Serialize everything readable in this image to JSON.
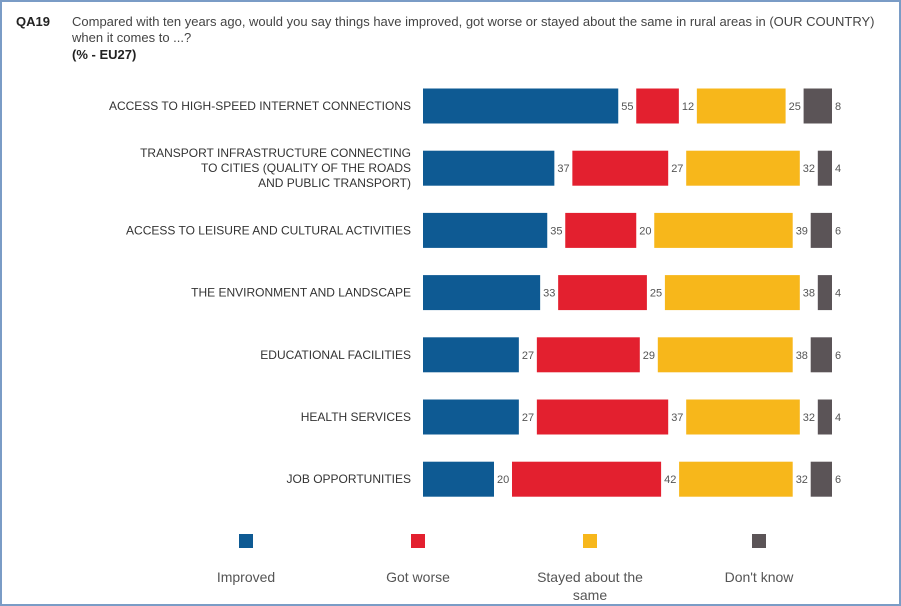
{
  "header": {
    "code": "QA19",
    "question": "Compared with ten years ago, would you say things have improved, got worse or stayed about the same in rural areas in (OUR COUNTRY) when it comes to ...?",
    "subtitle": "(% - EU27)"
  },
  "chart_data": {
    "type": "bar",
    "orientation": "horizontal-stacked",
    "categories": [
      [
        "ACCESS TO HIGH-SPEED INTERNET CONNECTIONS"
      ],
      [
        "TRANSPORT INFRASTRUCTURE CONNECTING",
        "TO CITIES (QUALITY OF THE ROADS",
        "AND PUBLIC TRANSPORT)"
      ],
      [
        "ACCESS TO LEISURE AND CULTURAL ACTIVITIES"
      ],
      [
        "THE ENVIRONMENT AND LANDSCAPE"
      ],
      [
        "EDUCATIONAL FACILITIES"
      ],
      [
        "HEALTH SERVICES"
      ],
      [
        "JOB OPPORTUNITIES"
      ]
    ],
    "series": [
      {
        "name": "Improved",
        "color": "#0e5a93",
        "values": [
          55,
          37,
          35,
          33,
          27,
          27,
          20
        ]
      },
      {
        "name": "Got worse",
        "color": "#e3202f",
        "values": [
          12,
          27,
          20,
          25,
          29,
          37,
          42
        ]
      },
      {
        "name": "Stayed about the same",
        "color": "#f7b71b",
        "values": [
          25,
          32,
          39,
          38,
          38,
          32,
          32
        ]
      },
      {
        "name": "Don't know",
        "color": "#5b5457",
        "values": [
          8,
          4,
          6,
          4,
          6,
          4,
          6
        ]
      }
    ],
    "legend": {
      "position": "bottom"
    },
    "grid": false
  }
}
